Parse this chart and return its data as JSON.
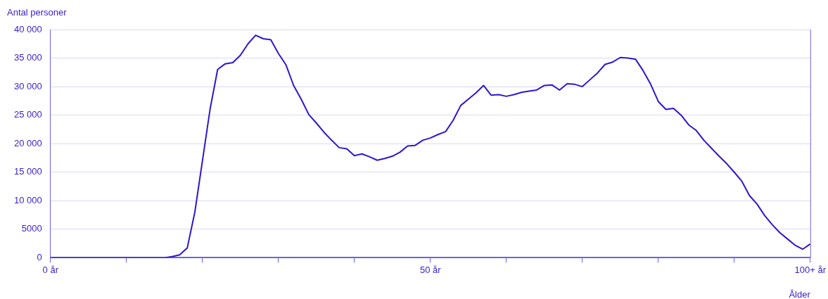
{
  "chart_data": {
    "type": "line",
    "ylabel": "Antal personer",
    "xlabel": "Ålder",
    "categories": [
      "0 år",
      null,
      null,
      null,
      null,
      null,
      null,
      null,
      null,
      null,
      null,
      null,
      null,
      null,
      null,
      null,
      null,
      null,
      null,
      null,
      null,
      null,
      null,
      null,
      null,
      null,
      null,
      null,
      null,
      null,
      null,
      null,
      null,
      null,
      null,
      null,
      null,
      null,
      null,
      null,
      null,
      null,
      null,
      null,
      null,
      null,
      null,
      null,
      null,
      null,
      "50 år",
      null,
      null,
      null,
      null,
      null,
      null,
      null,
      null,
      null,
      null,
      null,
      null,
      null,
      null,
      null,
      null,
      null,
      null,
      null,
      null,
      null,
      null,
      null,
      null,
      null,
      null,
      null,
      null,
      null,
      null,
      null,
      null,
      null,
      null,
      null,
      null,
      null,
      null,
      null,
      null,
      null,
      null,
      null,
      null,
      null,
      null,
      null,
      null,
      null,
      "100+ år"
    ],
    "series": [
      {
        "color": "#2e17cc",
        "values": [
          0,
          0,
          0,
          0,
          0,
          0,
          0,
          0,
          0,
          0,
          0,
          0,
          0,
          0,
          0,
          0,
          200,
          500,
          1700,
          8000,
          17000,
          26000,
          33000,
          34000,
          34200,
          35500,
          37500,
          39000,
          38400,
          38200,
          35800,
          33800,
          30200,
          27800,
          25100,
          23600,
          22000,
          20600,
          19300,
          19100,
          17900,
          18200,
          17700,
          17100,
          17400,
          17800,
          18500,
          19600,
          19700,
          20600,
          21000,
          21600,
          22100,
          24100,
          26700,
          27800,
          28900,
          30200,
          28500,
          28600,
          28300,
          28600,
          29000,
          29200,
          29400,
          30200,
          30300,
          29400,
          30500,
          30400,
          30000,
          31200,
          32400,
          33900,
          34300,
          35100,
          35000,
          34800,
          32800,
          30400,
          27400,
          26000,
          26200,
          25000,
          23300,
          22300,
          20600,
          19200,
          17800,
          16500,
          15000,
          13400,
          10900,
          9400,
          7400,
          5800,
          4400,
          3300,
          2200,
          1500,
          2400
        ]
      }
    ],
    "ylim": [
      0,
      40000
    ],
    "yticks": [
      0,
      5000,
      {
        "value": 10000,
        "label": "10 000"
      },
      {
        "value": 15000,
        "label": "15 000"
      },
      {
        "value": 20000,
        "label": "20 000"
      },
      {
        "value": 25000,
        "label": "25 000"
      },
      {
        "value": 30000,
        "label": "30 000"
      },
      {
        "value": 35000,
        "label": "35 000"
      },
      {
        "value": 40000,
        "label": "40 000"
      }
    ],
    "grid": "y",
    "legend": false,
    "marker": "none",
    "line_style": "solid"
  }
}
